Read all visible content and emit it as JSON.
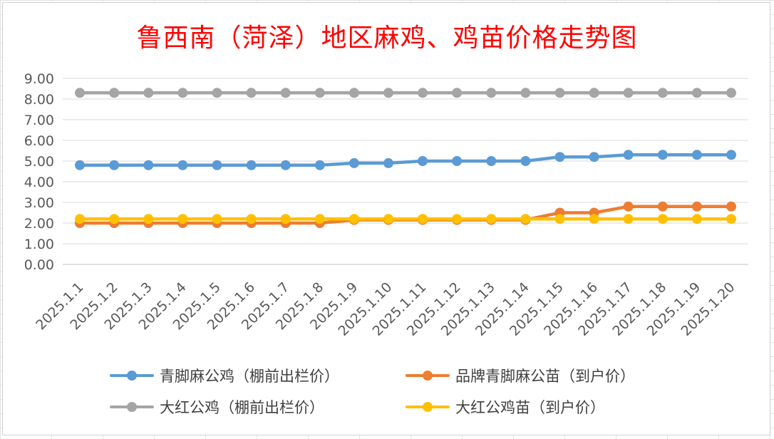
{
  "chart_data": {
    "type": "line",
    "title": "鲁西南（菏泽）地区麻鸡、鸡苗价格走势图",
    "xlabel": "",
    "ylabel": "",
    "ylim": [
      0,
      9
    ],
    "yticks": [
      "0.00",
      "1.00",
      "2.00",
      "3.00",
      "4.00",
      "5.00",
      "6.00",
      "7.00",
      "8.00",
      "9.00"
    ],
    "grid": "horizontal",
    "legend_position": "bottom",
    "categories": [
      "2025.1.1",
      "2025.1.2",
      "2025.1.3",
      "2025.1.4",
      "2025.1.5",
      "2025.1.6",
      "2025.1.7",
      "2025.1.8",
      "2025.1.9",
      "2025.1.10",
      "2025.1.11",
      "2025.1.12",
      "2025.1.13",
      "2025.1.14",
      "2025.1.15",
      "2025.1.16",
      "2025.1.17",
      "2025.1.18",
      "2025.1.19",
      "2025.1.20"
    ],
    "series": [
      {
        "name": "青脚麻公鸡（棚前出栏价）",
        "color": "#5b9bd5",
        "values": [
          4.8,
          4.8,
          4.8,
          4.8,
          4.8,
          4.8,
          4.8,
          4.8,
          4.9,
          4.9,
          5.0,
          5.0,
          5.0,
          5.0,
          5.2,
          5.2,
          5.3,
          5.3,
          5.3,
          5.3
        ]
      },
      {
        "name": "品牌青脚麻公苗（到户价）",
        "color": "#ed7d31",
        "values": [
          2.0,
          2.0,
          2.0,
          2.0,
          2.0,
          2.0,
          2.0,
          2.0,
          2.15,
          2.15,
          2.15,
          2.15,
          2.15,
          2.15,
          2.5,
          2.5,
          2.8,
          2.8,
          2.8,
          2.8
        ]
      },
      {
        "name": "大红公鸡（棚前出栏价）",
        "color": "#a5a5a5",
        "values": [
          8.3,
          8.3,
          8.3,
          8.3,
          8.3,
          8.3,
          8.3,
          8.3,
          8.3,
          8.3,
          8.3,
          8.3,
          8.3,
          8.3,
          8.3,
          8.3,
          8.3,
          8.3,
          8.3,
          8.3
        ]
      },
      {
        "name": "大红公鸡苗（到户价）",
        "color": "#ffc000",
        "values": [
          2.2,
          2.2,
          2.2,
          2.2,
          2.2,
          2.2,
          2.2,
          2.2,
          2.2,
          2.2,
          2.2,
          2.2,
          2.2,
          2.2,
          2.2,
          2.2,
          2.2,
          2.2,
          2.2,
          2.2
        ]
      }
    ]
  }
}
